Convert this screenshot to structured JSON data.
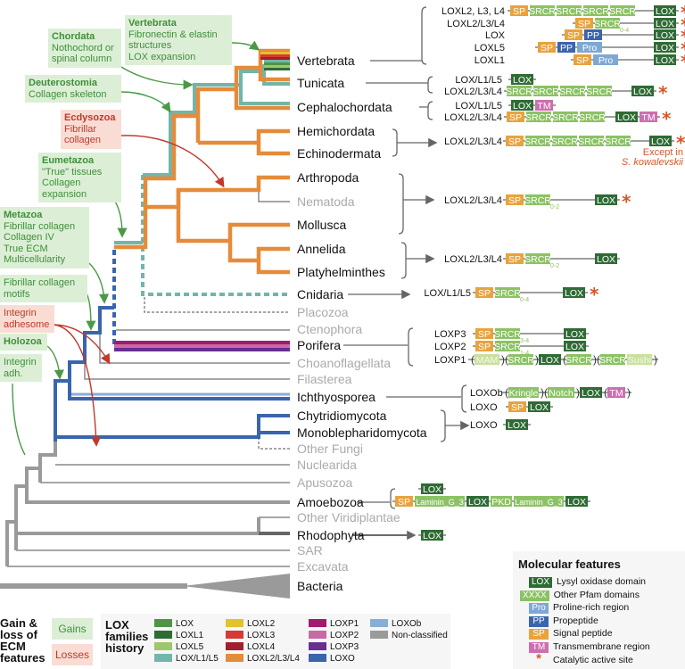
{
  "gain_loss_boxes": [
    {
      "kind": "gain",
      "title": "Vertebrata",
      "lines": [
        "Fibronectin & elastin",
        "structures",
        "LOX expansion"
      ]
    },
    {
      "kind": "gain",
      "title": "Chordata",
      "lines": [
        "Nothochord or",
        "spinal column"
      ]
    },
    {
      "kind": "gain",
      "title": "Deuterostomia",
      "lines": [
        "Collagen skeleton"
      ]
    },
    {
      "kind": "loss",
      "title": "Ecdysozoa",
      "lines": [
        "Fibrillar",
        "collagen"
      ]
    },
    {
      "kind": "gain",
      "title": "Eumetazoa",
      "lines": [
        "\"True\" tissues",
        "Collagen",
        "expansion"
      ]
    },
    {
      "kind": "gain",
      "title": "Metazoa",
      "lines": [
        "Fibrillar collagen",
        "Collagen IV",
        "True ECM",
        "Multicellularity"
      ]
    },
    {
      "kind": "gain",
      "title": "",
      "lines": [
        "Fibrillar collagen",
        "motifs"
      ]
    },
    {
      "kind": "loss",
      "title": "",
      "lines": [
        "Integrin",
        "adhesome"
      ]
    },
    {
      "kind": "gain",
      "title": "Holozoa",
      "lines": []
    },
    {
      "kind": "gain",
      "title": "",
      "lines": [
        "Integrin",
        "adh."
      ]
    }
  ],
  "taxa": [
    {
      "name": "Vertebrata",
      "grey": false
    },
    {
      "name": "Tunicata",
      "grey": false
    },
    {
      "name": "Cephalochordata",
      "grey": false
    },
    {
      "name": "Hemichordata",
      "grey": false
    },
    {
      "name": "Echinodermata",
      "grey": false
    },
    {
      "name": "Arthropoda",
      "grey": false
    },
    {
      "name": "Nematoda",
      "grey": true
    },
    {
      "name": "Mollusca",
      "grey": false
    },
    {
      "name": "Annelida",
      "grey": false
    },
    {
      "name": "Platyhelminthes",
      "grey": false
    },
    {
      "name": "Cnidaria",
      "grey": false
    },
    {
      "name": "Placozoa",
      "grey": true
    },
    {
      "name": "Ctenophora",
      "grey": true
    },
    {
      "name": "Porifera",
      "grey": false
    },
    {
      "name": "Choanoflagellata",
      "grey": true
    },
    {
      "name": "Filasterea",
      "grey": true
    },
    {
      "name": "Ichthyosporea",
      "grey": false
    },
    {
      "name": "Chytridiomycota",
      "grey": false
    },
    {
      "name": "Monoblepharidomycota",
      "grey": false
    },
    {
      "name": "Other Fungi",
      "grey": true
    },
    {
      "name": "Nuclearida",
      "grey": true
    },
    {
      "name": "Apusozoa",
      "grey": true
    },
    {
      "name": "Amoebozoa",
      "grey": false
    },
    {
      "name": "Other Viridiplantae",
      "grey": true
    },
    {
      "name": "Rhodophyta",
      "grey": false
    },
    {
      "name": "SAR",
      "grey": true
    },
    {
      "name": "Excavata",
      "grey": true
    },
    {
      "name": "Bacteria",
      "grey": false
    }
  ],
  "architectures": [
    {
      "label": "LOXL2, L3, L4",
      "star": true,
      "domains": [
        {
          "t": "SP",
          "k": "sp"
        },
        {
          "t": "SRCR",
          "k": "pf"
        },
        {
          "t": "SRCR",
          "k": "pf"
        },
        {
          "t": "SRCR",
          "k": "pf"
        },
        {
          "t": "SRCR",
          "k": "pf"
        },
        {
          "t": "LOX",
          "k": "lox"
        }
      ]
    },
    {
      "label": "LOXL2/L3/L4",
      "star": true,
      "domains": [
        {
          "t": "SP",
          "k": "sp"
        },
        {
          "t": "SRCR",
          "k": "pf",
          "sub": "0-4"
        },
        {
          "t": "LOX",
          "k": "lox"
        }
      ]
    },
    {
      "label": "LOX",
      "star": true,
      "domains": [
        {
          "t": "SP",
          "k": "sp"
        },
        {
          "t": "PP",
          "k": "pp"
        },
        {
          "t": "LOX",
          "k": "lox"
        }
      ]
    },
    {
      "label": "LOXL5",
      "star": true,
      "domains": [
        {
          "t": "SP",
          "k": "sp"
        },
        {
          "t": "PP",
          "k": "pp"
        },
        {
          "t": "Pro",
          "k": "pro"
        },
        {
          "t": "LOX",
          "k": "lox"
        }
      ]
    },
    {
      "label": "LOXL1",
      "star": true,
      "domains": [
        {
          "t": "SP",
          "k": "sp"
        },
        {
          "t": "Pro",
          "k": "pro"
        },
        {
          "t": "LOX",
          "k": "lox"
        }
      ]
    },
    {
      "label": "LOX/L1/L5",
      "star": false,
      "domains": [
        {
          "t": "LOX",
          "k": "lox"
        }
      ]
    },
    {
      "label": "LOXL2/L3/L4",
      "star": true,
      "domains": [
        {
          "t": "SRCR",
          "k": "pf"
        },
        {
          "t": "SRCR",
          "k": "pf"
        },
        {
          "t": "SRCR",
          "k": "pf"
        },
        {
          "t": "SRCR",
          "k": "pf"
        },
        {
          "t": "LOX",
          "k": "lox"
        }
      ]
    },
    {
      "label": "LOX/L1/L5",
      "star": false,
      "domains": [
        {
          "t": "LOX",
          "k": "lox"
        },
        {
          "t": "TM",
          "k": "tm"
        }
      ]
    },
    {
      "label": "LOXL2/L3/L4",
      "star": true,
      "domains": [
        {
          "t": "SP",
          "k": "sp"
        },
        {
          "t": "SRCR",
          "k": "pf"
        },
        {
          "t": "SRCR",
          "k": "pf"
        },
        {
          "t": "SRCR",
          "k": "pf"
        },
        {
          "t": "LOX",
          "k": "lox"
        },
        {
          "t": "TM",
          "k": "tm"
        }
      ]
    },
    {
      "label": "LOXL2/L3/L4",
      "star": true,
      "domains": [
        {
          "t": "SP",
          "k": "sp"
        },
        {
          "t": "SRCR",
          "k": "pf"
        },
        {
          "t": "SRCR",
          "k": "pf"
        },
        {
          "t": "SRCR",
          "k": "pf"
        },
        {
          "t": "SRCR",
          "k": "pf"
        },
        {
          "t": "LOX",
          "k": "lox"
        }
      ],
      "note": [
        "Except in",
        "S. kowalevskii"
      ]
    },
    {
      "label": "LOXL2/L3/L4",
      "star": true,
      "domains": [
        {
          "t": "SP",
          "k": "sp"
        },
        {
          "t": "SRCR",
          "k": "pf",
          "sub": "0-2"
        },
        {
          "t": "LOX",
          "k": "lox"
        }
      ]
    },
    {
      "label": "LOXL2/L3/L4",
      "star": false,
      "domains": [
        {
          "t": "SP",
          "k": "sp"
        },
        {
          "t": "SRCR",
          "k": "pf",
          "sub": "0-2"
        },
        {
          "t": "LOX",
          "k": "lox"
        }
      ]
    },
    {
      "label": "LOX/L1/L5",
      "star": true,
      "domains": [
        {
          "t": "SP",
          "k": "sp"
        },
        {
          "t": "SRCR",
          "k": "pf",
          "sub": "0-4"
        },
        {
          "t": "LOX",
          "k": "lox"
        }
      ]
    },
    {
      "label": "LOXP3",
      "star": false,
      "domains": [
        {
          "t": "SP",
          "k": "sp"
        },
        {
          "t": "SRCR",
          "k": "pf",
          "sub": "3-4"
        },
        {
          "t": "LOX",
          "k": "lox"
        }
      ]
    },
    {
      "label": "LOXP2",
      "star": false,
      "domains": [
        {
          "t": "SP",
          "k": "sp"
        },
        {
          "t": "SRCR",
          "k": "pf",
          "sub": "1-4"
        },
        {
          "t": "LOX",
          "k": "lox"
        }
      ]
    },
    {
      "label": "LOXP1",
      "star": false,
      "domains": [
        {
          "t": "(",
          "k": "paren"
        },
        {
          "t": "MAM",
          "k": "lt"
        },
        {
          "t": ")(",
          "k": "paren"
        },
        {
          "t": "SRCR",
          "k": "pf"
        },
        {
          "t": ")",
          "k": "paren"
        },
        {
          "t": "LOX",
          "k": "lox"
        },
        {
          "t": "(",
          "k": "paren"
        },
        {
          "t": "SRCR",
          "k": "pf"
        },
        {
          "t": ")(",
          "k": "paren"
        },
        {
          "t": "SRCR",
          "k": "pf"
        },
        {
          "t": "Sushi",
          "k": "lt"
        },
        {
          "t": ")",
          "k": "paren"
        }
      ]
    },
    {
      "label": "LOXOb",
      "star": false,
      "domains": [
        {
          "t": "(",
          "k": "paren"
        },
        {
          "t": "Kringle",
          "k": "pf"
        },
        {
          "t": ")(",
          "k": "paren"
        },
        {
          "t": "Notch",
          "k": "pf"
        },
        {
          "t": ")",
          "k": "paren"
        },
        {
          "t": "LOX",
          "k": "lox"
        },
        {
          "t": "(",
          "k": "paren"
        },
        {
          "t": "TM",
          "k": "tm"
        },
        {
          "t": ")",
          "k": "paren"
        }
      ]
    },
    {
      "label": "LOXO",
      "star": false,
      "domains": [
        {
          "t": "SP",
          "k": "sp"
        },
        {
          "t": "LOX",
          "k": "lox"
        }
      ]
    },
    {
      "label": "LOXO",
      "star": false,
      "domains": [
        {
          "t": "LOX",
          "k": "lox"
        }
      ]
    },
    {
      "label": "",
      "star": false,
      "domains": [
        {
          "t": "LOX",
          "k": "lox"
        }
      ]
    },
    {
      "label": "",
      "star": false,
      "domains": [
        {
          "t": "SP",
          "k": "sp"
        },
        {
          "t": "Laminin_G_3",
          "k": "pf"
        },
        {
          "t": "LOX",
          "k": "lox"
        },
        {
          "t": "PKD",
          "k": "pf"
        },
        {
          "t": "Laminin_G_3",
          "k": "pf"
        },
        {
          "t": "LOX",
          "k": "lox"
        }
      ]
    },
    {
      "label": "",
      "star": false,
      "domains": [
        {
          "t": "LOX",
          "k": "lox"
        }
      ]
    }
  ],
  "colors": {
    "lox": "#2f6b35",
    "pf": "#8cc265",
    "lt": "#c9e19c",
    "sp": "#e8a33d",
    "pp": "#3a64ad",
    "pro": "#7ea8d4",
    "tm": "#cc6fb0",
    "star": "#d4572a",
    "gain": "#3f8f3a",
    "loss": "#c0392b"
  },
  "legend_ecm": {
    "title": "Gain & loss of ECM features",
    "gains": "Gains",
    "losses": "Losses"
  },
  "legend_families": {
    "title": "LOX families history",
    "items": [
      {
        "label": "LOX",
        "color": "#4f9445"
      },
      {
        "label": "LOXL1",
        "color": "#2f6b35"
      },
      {
        "label": "LOXL5",
        "color": "#9bc86a"
      },
      {
        "label": "LOX/L1/L5",
        "color": "#72b5aa"
      },
      {
        "label": "LOXL2",
        "color": "#e2c22f"
      },
      {
        "label": "LOXL3",
        "color": "#d63a32"
      },
      {
        "label": "LOXL4",
        "color": "#a01f2a"
      },
      {
        "label": "LOXL2/L3/L4",
        "color": "#e58b3a"
      },
      {
        "label": "LOXP1",
        "color": "#a3196e"
      },
      {
        "label": "LOXP2",
        "color": "#c76aa6"
      },
      {
        "label": "LOXP3",
        "color": "#6a2d91"
      },
      {
        "label": "LOXO",
        "color": "#3a64ad"
      },
      {
        "label": "LOXOb",
        "color": "#86aed6"
      },
      {
        "label": "Non-classified",
        "color": "#9a9a9a"
      }
    ]
  },
  "legend_molecular": {
    "title": "Molecular features",
    "items": [
      {
        "tag": "LOX",
        "k": "lox",
        "label": "Lysyl oxidase domain"
      },
      {
        "tag": "XXXX",
        "k": "pf",
        "label": "Other Pfam domains"
      },
      {
        "tag": "Pro",
        "k": "pro",
        "label": "Proline-rich region"
      },
      {
        "tag": "PP",
        "k": "pp",
        "label": "Propeptide"
      },
      {
        "tag": "SP",
        "k": "sp",
        "label": "Signal peptide"
      },
      {
        "tag": "TM",
        "k": "tm",
        "label": "Transmembrane region"
      },
      {
        "tag": "*",
        "k": "star",
        "label": "Catalytic active site"
      }
    ]
  }
}
